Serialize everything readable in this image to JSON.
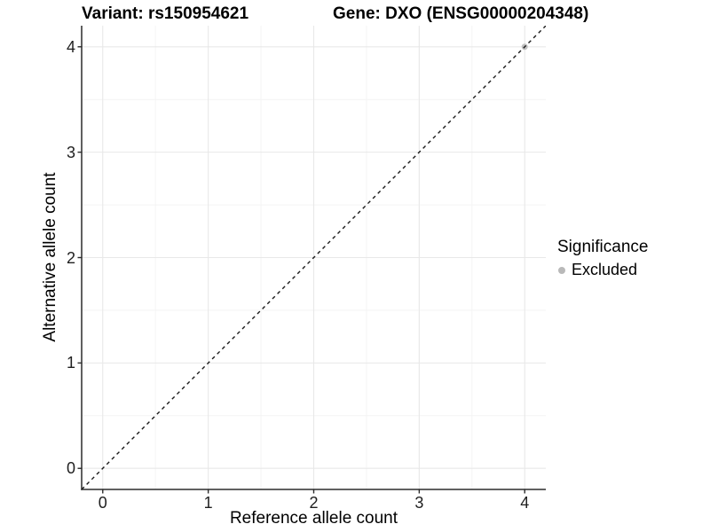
{
  "header": {
    "title_left": "Variant: rs150954621",
    "title_right": "Gene: DXO (ENSG00000204348)"
  },
  "chart_data": {
    "type": "scatter",
    "title": "Variant: rs150954621 / Gene: DXO (ENSG00000204348)",
    "xlabel": "Reference allele count",
    "ylabel": "Alternative allele count",
    "xlim": [
      -0.2,
      4.2
    ],
    "ylim": [
      -0.2,
      4.2
    ],
    "x_ticks": [
      0,
      1,
      2,
      3,
      4
    ],
    "y_ticks": [
      0,
      1,
      2,
      3,
      4
    ],
    "x_minor_ticks": [
      0.5,
      1.5,
      2.5,
      3.5
    ],
    "y_minor_ticks": [
      0.5,
      1.5,
      2.5,
      3.5
    ],
    "grid": "major+minor",
    "series": [
      {
        "name": "Excluded",
        "color": "#b9b9b9",
        "points": [
          {
            "x": 4,
            "y": 4
          }
        ]
      }
    ],
    "reference_line": {
      "slope": 1,
      "intercept": 0,
      "style": "dashed",
      "color": "#1a1a1a"
    },
    "legend": {
      "title": "Significance",
      "position": "right",
      "items": [
        {
          "label": "Excluded",
          "color": "#b9b9b9"
        }
      ]
    }
  },
  "colors": {
    "background": "#ffffff",
    "grid_major": "#e8e8e8",
    "grid_minor": "#f4f4f4",
    "axis_line": "#2b2b2b",
    "tick_mark": "#2b2b2b"
  }
}
